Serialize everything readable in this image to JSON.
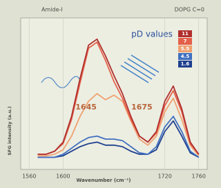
{
  "chart_data": {
    "type": "line",
    "header_left": "Amide-I",
    "header_right": "DOPG C=0",
    "x_label": "Wavenumber (cm⁻¹)",
    "y_label": "SFG intensity (a.u.)",
    "legend_title": "pD values",
    "annotations": [
      {
        "text": "1645",
        "x": 1645
      },
      {
        "text": "1675",
        "x": 1675
      }
    ],
    "x": [
      1570,
      1580,
      1590,
      1600,
      1610,
      1620,
      1630,
      1640,
      1650,
      1660,
      1670,
      1680,
      1690,
      1700,
      1710,
      1720,
      1730,
      1740,
      1750,
      1760
    ],
    "xlim": [
      1550,
      1770
    ],
    "xticks": [
      1560,
      1600,
      1720,
      1760
    ],
    "ylim": [
      0,
      1
    ],
    "grid": true,
    "series": [
      {
        "name": "1.6",
        "color": "#1f3f8f",
        "values": [
          0.08,
          0.08,
          0.08,
          0.09,
          0.12,
          0.15,
          0.17,
          0.18,
          0.16,
          0.16,
          0.15,
          0.12,
          0.1,
          0.1,
          0.13,
          0.25,
          0.32,
          0.22,
          0.11,
          0.08
        ]
      },
      {
        "name": "4.5",
        "color": "#3f6fc0",
        "values": [
          0.08,
          0.08,
          0.08,
          0.1,
          0.14,
          0.18,
          0.21,
          0.22,
          0.2,
          0.2,
          0.19,
          0.15,
          0.11,
          0.1,
          0.15,
          0.28,
          0.35,
          0.25,
          0.12,
          0.08
        ]
      },
      {
        "name": "5.5",
        "color": "#f0a070",
        "values": [
          0.09,
          0.09,
          0.1,
          0.13,
          0.22,
          0.35,
          0.45,
          0.5,
          0.46,
          0.49,
          0.45,
          0.32,
          0.2,
          0.16,
          0.22,
          0.38,
          0.47,
          0.33,
          0.16,
          0.09
        ]
      },
      {
        "name": "7",
        "color": "#e4604a",
        "values": [
          0.1,
          0.1,
          0.12,
          0.17,
          0.33,
          0.57,
          0.8,
          0.84,
          0.72,
          0.58,
          0.47,
          0.33,
          0.22,
          0.18,
          0.24,
          0.42,
          0.52,
          0.38,
          0.17,
          0.1
        ]
      },
      {
        "name": "11",
        "color": "#b0302e",
        "values": [
          0.1,
          0.1,
          0.12,
          0.18,
          0.35,
          0.6,
          0.82,
          0.86,
          0.75,
          0.62,
          0.5,
          0.35,
          0.22,
          0.18,
          0.25,
          0.45,
          0.55,
          0.4,
          0.18,
          0.1
        ]
      }
    ]
  }
}
